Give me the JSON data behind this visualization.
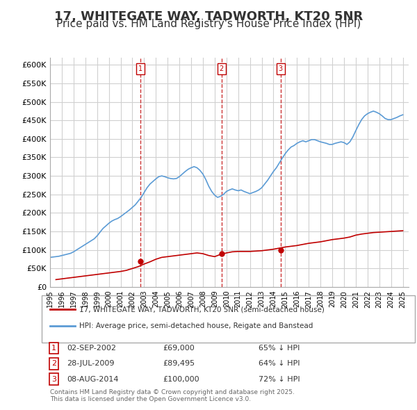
{
  "title": "17, WHITEGATE WAY, TADWORTH, KT20 5NR",
  "subtitle": "Price paid vs. HM Land Registry's House Price Index (HPI)",
  "title_fontsize": 13,
  "subtitle_fontsize": 11,
  "ylim": [
    0,
    620000
  ],
  "yticks": [
    0,
    50000,
    100000,
    150000,
    200000,
    250000,
    300000,
    350000,
    400000,
    450000,
    500000,
    550000,
    600000
  ],
  "ytick_labels": [
    "£0",
    "£50K",
    "£100K",
    "£150K",
    "£200K",
    "£250K",
    "£300K",
    "£350K",
    "£400K",
    "£450K",
    "£500K",
    "£550K",
    "£600K"
  ],
  "xlim_start": 1995.0,
  "xlim_end": 2025.5,
  "hpi_color": "#5b9bd5",
  "price_color": "#c00000",
  "transaction_color": "#c00000",
  "grid_color": "#d0d0d0",
  "background_color": "#ffffff",
  "legend_label_red": "17, WHITEGATE WAY, TADWORTH, KT20 5NR (semi-detached house)",
  "legend_label_blue": "HPI: Average price, semi-detached house, Reigate and Banstead",
  "transactions": [
    {
      "num": 1,
      "date": "02-SEP-2002",
      "price": "£69,000",
      "pct": "65% ↓ HPI",
      "year": 2002.67
    },
    {
      "num": 2,
      "date": "28-JUL-2009",
      "price": "£89,495",
      "pct": "64% ↓ HPI",
      "year": 2009.58
    },
    {
      "num": 3,
      "date": "08-AUG-2014",
      "price": "£100,000",
      "pct": "72% ↓ HPI",
      "year": 2014.61
    }
  ],
  "transaction_prices": [
    69000,
    89495,
    100000
  ],
  "footer": "Contains HM Land Registry data © Crown copyright and database right 2025.\nThis data is licensed under the Open Government Licence v3.0.",
  "hpi_data_x": [
    1995.0,
    1995.25,
    1995.5,
    1995.75,
    1996.0,
    1996.25,
    1996.5,
    1996.75,
    1997.0,
    1997.25,
    1997.5,
    1997.75,
    1998.0,
    1998.25,
    1998.5,
    1998.75,
    1999.0,
    1999.25,
    1999.5,
    1999.75,
    2000.0,
    2000.25,
    2000.5,
    2000.75,
    2001.0,
    2001.25,
    2001.5,
    2001.75,
    2002.0,
    2002.25,
    2002.5,
    2002.75,
    2003.0,
    2003.25,
    2003.5,
    2003.75,
    2004.0,
    2004.25,
    2004.5,
    2004.75,
    2005.0,
    2005.25,
    2005.5,
    2005.75,
    2006.0,
    2006.25,
    2006.5,
    2006.75,
    2007.0,
    2007.25,
    2007.5,
    2007.75,
    2008.0,
    2008.25,
    2008.5,
    2008.75,
    2009.0,
    2009.25,
    2009.5,
    2009.75,
    2010.0,
    2010.25,
    2010.5,
    2010.75,
    2011.0,
    2011.25,
    2011.5,
    2011.75,
    2012.0,
    2012.25,
    2012.5,
    2012.75,
    2013.0,
    2013.25,
    2013.5,
    2013.75,
    2014.0,
    2014.25,
    2014.5,
    2014.75,
    2015.0,
    2015.25,
    2015.5,
    2015.75,
    2016.0,
    2016.25,
    2016.5,
    2016.75,
    2017.0,
    2017.25,
    2017.5,
    2017.75,
    2018.0,
    2018.25,
    2018.5,
    2018.75,
    2019.0,
    2019.25,
    2019.5,
    2019.75,
    2020.0,
    2020.25,
    2020.5,
    2020.75,
    2021.0,
    2021.25,
    2021.5,
    2021.75,
    2022.0,
    2022.25,
    2022.5,
    2022.75,
    2023.0,
    2023.25,
    2023.5,
    2023.75,
    2024.0,
    2024.25,
    2024.5,
    2024.75,
    2025.0
  ],
  "hpi_data_y": [
    80000,
    81000,
    82000,
    83000,
    85000,
    87000,
    89000,
    91000,
    95000,
    100000,
    105000,
    110000,
    115000,
    120000,
    125000,
    130000,
    138000,
    148000,
    158000,
    165000,
    172000,
    178000,
    182000,
    185000,
    190000,
    196000,
    202000,
    208000,
    215000,
    222000,
    232000,
    242000,
    255000,
    268000,
    278000,
    285000,
    292000,
    298000,
    300000,
    298000,
    295000,
    293000,
    292000,
    293000,
    298000,
    305000,
    312000,
    318000,
    322000,
    325000,
    322000,
    315000,
    305000,
    290000,
    272000,
    258000,
    248000,
    242000,
    245000,
    250000,
    258000,
    262000,
    265000,
    262000,
    260000,
    262000,
    258000,
    255000,
    252000,
    255000,
    258000,
    262000,
    268000,
    278000,
    288000,
    300000,
    312000,
    322000,
    335000,
    348000,
    360000,
    370000,
    378000,
    382000,
    388000,
    392000,
    395000,
    392000,
    395000,
    398000,
    398000,
    395000,
    392000,
    390000,
    388000,
    385000,
    385000,
    388000,
    390000,
    392000,
    390000,
    385000,
    392000,
    405000,
    422000,
    438000,
    452000,
    462000,
    468000,
    472000,
    475000,
    472000,
    468000,
    462000,
    455000,
    452000,
    452000,
    455000,
    458000,
    462000,
    465000
  ],
  "price_data_x": [
    1995.5,
    1996.0,
    1996.5,
    1997.0,
    1997.5,
    1998.0,
    1998.5,
    1999.0,
    1999.5,
    2000.0,
    2000.5,
    2001.0,
    2001.5,
    2002.0,
    2002.5,
    2003.0,
    2003.5,
    2004.0,
    2004.5,
    2005.0,
    2005.5,
    2006.0,
    2006.5,
    2007.0,
    2007.5,
    2008.0,
    2008.5,
    2009.0,
    2009.5,
    2010.0,
    2010.5,
    2011.0,
    2011.5,
    2012.0,
    2012.5,
    2013.0,
    2013.5,
    2014.0,
    2014.5,
    2015.0,
    2015.5,
    2016.0,
    2016.5,
    2017.0,
    2017.5,
    2018.0,
    2018.5,
    2019.0,
    2019.5,
    2020.0,
    2020.5,
    2021.0,
    2021.5,
    2022.0,
    2022.5,
    2023.0,
    2023.5,
    2024.0,
    2024.5,
    2025.0
  ],
  "price_data_y": [
    20000,
    22000,
    24000,
    26000,
    28000,
    30000,
    32000,
    34000,
    36000,
    38000,
    40000,
    42000,
    45000,
    50000,
    55000,
    62000,
    68000,
    75000,
    80000,
    82000,
    84000,
    86000,
    88000,
    90000,
    92000,
    90000,
    85000,
    82000,
    88000,
    92000,
    95000,
    96000,
    96000,
    96000,
    97000,
    98000,
    100000,
    102000,
    105000,
    108000,
    110000,
    112000,
    115000,
    118000,
    120000,
    122000,
    125000,
    128000,
    130000,
    132000,
    135000,
    140000,
    143000,
    145000,
    147000,
    148000,
    149000,
    150000,
    151000,
    152000
  ]
}
